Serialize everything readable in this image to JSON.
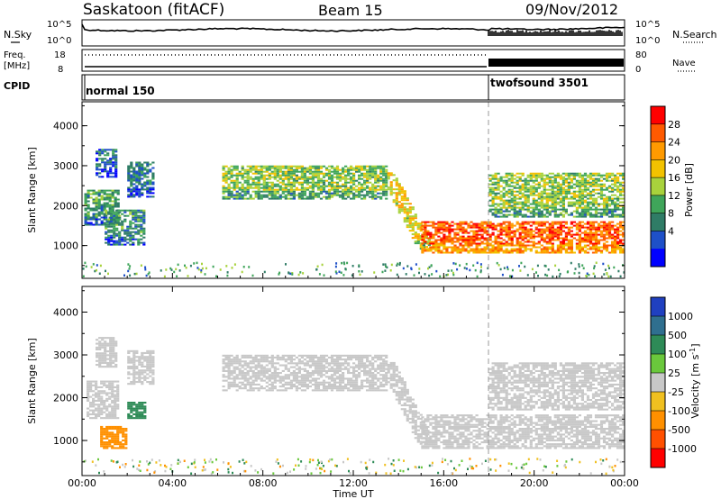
{
  "header": {
    "station": "Saskatoon (fitACF)",
    "beam": "Beam 15",
    "date": "09/Nov/2012"
  },
  "noise_panel": {
    "left_label": "N.Sky",
    "right_label": "N.Search",
    "y_ticks_left": [
      "10^5",
      "10^0"
    ],
    "y_ticks_right": [
      "10^5",
      "10^0"
    ]
  },
  "freq_panel": {
    "left_label_1": "Freq.",
    "left_label_2": "[MHz]",
    "right_label": "Nave",
    "y_ticks_left": [
      "18",
      "8"
    ],
    "y_ticks_right": [
      "80",
      "0"
    ]
  },
  "cpid_panel": {
    "label": "CPID",
    "modes": [
      {
        "name": "normal 150",
        "start_hour": 0.0
      },
      {
        "name": "twofsound 3501",
        "start_hour": 18.0
      }
    ]
  },
  "power_colorbar": {
    "label": "Power [dB]",
    "ticks": [
      "28",
      "24",
      "20",
      "16",
      "12",
      "8",
      "4"
    ],
    "colors": [
      "#ff0000",
      "#ff5a00",
      "#ff9a00",
      "#f2c200",
      "#a8d23c",
      "#3fa55a",
      "#2f7c66",
      "#1e50c8",
      "#0000ff"
    ]
  },
  "velocity_colorbar": {
    "label": "Velocity [m s",
    "label_sup": "-1",
    "label_end": "]",
    "ticks": [
      "1000",
      "500",
      "100",
      "25",
      "-25",
      "-100",
      "-500",
      "-1000"
    ],
    "colors": [
      "#2040c0",
      "#2f6f8f",
      "#2e8b57",
      "#6ac83c",
      "#c8c8c8",
      "#f0c020",
      "#ff9000",
      "#ff5000",
      "#ff0000"
    ]
  },
  "axes": {
    "ylabel": "Slant Range [km]",
    "xlabel": "Time UT",
    "y_ticks": [
      "4000",
      "3000",
      "2000",
      "1000"
    ],
    "x_ticks": [
      "00:00",
      "04:00",
      "08:00",
      "12:00",
      "16:00",
      "20:00",
      "00:00"
    ]
  },
  "chart_data": [
    {
      "type": "heatmap",
      "name": "power",
      "x_range_hours": [
        0,
        24
      ],
      "ylim": [
        180,
        4600
      ],
      "ylabel": "Slant Range [km]",
      "mode_change_hour": 18.0,
      "regions": [
        {
          "t0": 0.1,
          "t1": 1.6,
          "r0": 1500,
          "r1": 2400,
          "level": 10
        },
        {
          "t0": 0.6,
          "t1": 1.5,
          "r0": 2700,
          "r1": 3400,
          "level": 6
        },
        {
          "t0": 2.0,
          "t1": 3.2,
          "r0": 2200,
          "r1": 3100,
          "level": 7
        },
        {
          "t0": 1.0,
          "t1": 2.7,
          "r0": 1000,
          "r1": 1900,
          "level": 9
        },
        {
          "t0": 6.2,
          "t1": 13.5,
          "r0": 2150,
          "r1": 3000,
          "level": 14
        },
        {
          "t0": 13.5,
          "t1": 15.3,
          "r0": 900,
          "r1": 2800,
          "level": 18
        },
        {
          "t0": 15.0,
          "t1": 23.9,
          "r0": 800,
          "r1": 1600,
          "level": 26
        },
        {
          "t0": 18.0,
          "t1": 23.9,
          "r0": 1700,
          "r1": 2800,
          "level": 14
        }
      ]
    },
    {
      "type": "heatmap",
      "name": "velocity",
      "x_range_hours": [
        0,
        24
      ],
      "ylim": [
        180,
        4600
      ],
      "ylabel": "Slant Range [km]",
      "mode_change_hour": 18.0,
      "regions": [
        {
          "t0": 0.2,
          "t1": 1.6,
          "r0": 1500,
          "r1": 2400,
          "vel": 0
        },
        {
          "t0": 0.6,
          "t1": 1.5,
          "r0": 2700,
          "r1": 3400,
          "vel": 0
        },
        {
          "t0": 2.0,
          "t1": 3.2,
          "r0": 2300,
          "r1": 3100,
          "vel": 0
        },
        {
          "t0": 2.0,
          "t1": 2.8,
          "r0": 1500,
          "r1": 1900,
          "vel": 150
        },
        {
          "t0": 0.8,
          "t1": 2.0,
          "r0": 800,
          "r1": 1300,
          "vel": -150
        },
        {
          "t0": 6.2,
          "t1": 13.5,
          "r0": 2150,
          "r1": 3000,
          "vel": 0
        },
        {
          "t0": 13.5,
          "t1": 15.3,
          "r0": 900,
          "r1": 2800,
          "vel": 0
        },
        {
          "t0": 15.0,
          "t1": 23.9,
          "r0": 800,
          "r1": 1600,
          "vel": 0
        },
        {
          "t0": 18.0,
          "t1": 23.9,
          "r0": 1700,
          "r1": 2800,
          "vel": 0
        }
      ]
    }
  ]
}
